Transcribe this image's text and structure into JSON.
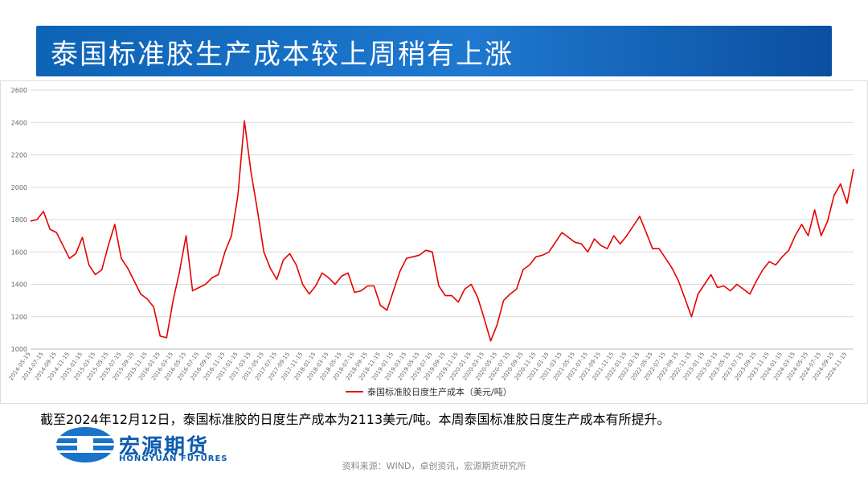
{
  "title": "泰国标准胶生产成本较上周稍有上涨",
  "chart_data": {
    "type": "line",
    "categories": [
      "2014-05-15",
      null,
      "2014-07-15",
      null,
      "2014-09-15",
      null,
      "2014-11-15",
      null,
      "2015-01-15",
      null,
      "2015-03-15",
      null,
      "2015-05-15",
      null,
      "2015-07-15",
      null,
      "2015-09-15",
      null,
      "2015-11-15",
      null,
      "2016-01-15",
      null,
      "2016-03-15",
      null,
      "2016-05-15",
      null,
      "2016-07-15",
      null,
      "2016-09-15",
      null,
      "2016-11-15",
      null,
      "2017-01-15",
      null,
      "2017-03-15",
      null,
      "2017-05-15",
      null,
      "2017-07-15",
      null,
      "2017-09-15",
      null,
      "2017-11-15",
      null,
      "2018-01-15",
      null,
      "2018-03-15",
      null,
      "2018-05-15",
      null,
      "2018-07-15",
      null,
      "2018-09-15",
      null,
      "2018-11-15",
      null,
      "2019-01-15",
      null,
      "2019-03-15",
      null,
      "2019-05-15",
      null,
      "2019-07-15",
      null,
      "2019-09-15",
      null,
      "2019-11-15",
      null,
      "2020-01-15",
      null,
      "2020-03-15",
      null,
      "2020-05-15",
      null,
      "2020-07-15",
      null,
      "2020-09-15",
      null,
      "2020-11-15",
      null,
      "2021-01-15",
      null,
      "2021-03-15",
      null,
      "2021-05-15",
      null,
      "2021-07-15",
      null,
      "2021-09-15",
      null,
      "2021-11-15",
      null,
      "2022-01-15",
      null,
      "2022-03-15",
      null,
      "2022-05-15",
      null,
      "2022-07-15",
      null,
      "2022-09-15",
      null,
      "2022-11-15",
      null,
      "2023-01-15",
      null,
      "2023-03-15",
      null,
      "2023-05-15",
      null,
      "2023-07-15",
      null,
      "2023-09-15",
      null,
      "2023-11-15",
      null,
      "2024-01-15",
      null,
      "2024-03-15",
      null,
      "2024-05-15",
      null,
      "2024-07-15",
      null,
      "2024-09-15",
      null,
      "2024-11-15",
      null
    ],
    "series": [
      {
        "name": "泰国标准胶日度生产成本（美元/吨）",
        "color": "#e60000",
        "values": [
          1790,
          1800,
          1850,
          1740,
          1720,
          1640,
          1560,
          1590,
          1690,
          1520,
          1460,
          1490,
          1640,
          1770,
          1560,
          1500,
          1420,
          1340,
          1310,
          1260,
          1080,
          1070,
          1300,
          1480,
          1700,
          1360,
          1380,
          1400,
          1440,
          1460,
          1600,
          1700,
          1950,
          2410,
          2100,
          1860,
          1600,
          1500,
          1430,
          1550,
          1590,
          1520,
          1400,
          1340,
          1390,
          1470,
          1440,
          1400,
          1450,
          1470,
          1350,
          1360,
          1390,
          1390,
          1270,
          1240,
          1360,
          1480,
          1560,
          1570,
          1580,
          1610,
          1600,
          1390,
          1330,
          1330,
          1290,
          1370,
          1400,
          1320,
          1190,
          1050,
          1150,
          1300,
          1340,
          1370,
          1490,
          1520,
          1570,
          1580,
          1600,
          1660,
          1720,
          1690,
          1660,
          1650,
          1600,
          1680,
          1640,
          1620,
          1700,
          1650,
          1700,
          1760,
          1820,
          1720,
          1620,
          1620,
          1560,
          1500,
          1420,
          1310,
          1200,
          1340,
          1400,
          1460,
          1380,
          1390,
          1360,
          1400,
          1370,
          1340,
          1420,
          1490,
          1540,
          1520,
          1570,
          1610,
          1700,
          1770,
          1700,
          1860,
          1700,
          1790,
          1950,
          2020,
          1900,
          2113
        ]
      }
    ],
    "ylim": [
      1000,
      2600
    ],
    "yticks": [
      1000,
      1200,
      1400,
      1600,
      1800,
      2000,
      2200,
      2400,
      2600
    ],
    "grid": true
  },
  "caption": "截至2024年12月12日，泰国标准胶的日度生产成本为2113美元/吨。本周泰国标准胶日度生产成本有所提升。",
  "logo": {
    "name": "宏源期货",
    "subtitle": "HONGYUAN FUTURES"
  },
  "source": "资料来源：WIND，卓创资讯，宏源期货研究所"
}
